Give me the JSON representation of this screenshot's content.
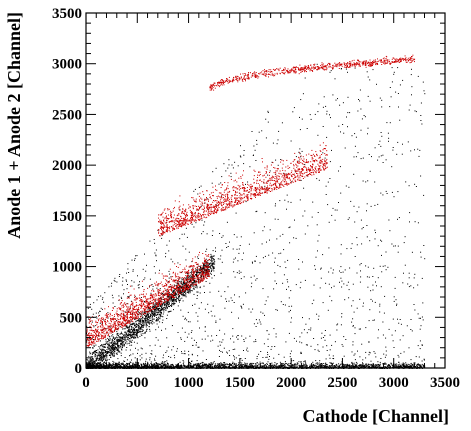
{
  "chart_data": {
    "type": "scatter",
    "title": "",
    "xlabel": "Cathode [Channel]",
    "ylabel": "Anode 1 + Anode 2 [Channel]",
    "xlim": [
      0,
      3500
    ],
    "ylim": [
      0,
      3500
    ],
    "x_ticks": [
      "0",
      "500",
      "1000",
      "1500",
      "2000",
      "2500",
      "3000",
      "3500"
    ],
    "y_ticks": [
      "0",
      "500",
      "1000",
      "1500",
      "2000",
      "2500",
      "3000",
      "3500"
    ],
    "grid": false,
    "legend": "none",
    "colors": {
      "black_points": "#000000",
      "red_points": "#cc0000"
    },
    "series": [
      {
        "color": "#000000",
        "components": [
          {
            "shape": "band",
            "x_range": [
              0,
              3300
            ],
            "y_center": 0,
            "y_spread": 80
          },
          {
            "shape": "diagonal",
            "x_range": [
              0,
              1250
            ],
            "y_at_x_start": 0,
            "y_at_x_end": 1050,
            "y_spread": 220
          },
          {
            "shape": "uniform",
            "x_range": [
              0,
              3300
            ],
            "y_range": [
              0,
              3000
            ]
          }
        ]
      },
      {
        "color": "#cc0000",
        "components": [
          {
            "shape": "cluster",
            "x_range": [
              0,
              1200
            ],
            "y_range": [
              200,
              1200
            ]
          },
          {
            "shape": "cluster",
            "x_range": [
              700,
              2350
            ],
            "y_range": [
              1300,
              2250
            ]
          },
          {
            "shape": "arc",
            "x_range": [
              1200,
              3200
            ],
            "y_range": [
              2750,
              3050
            ]
          }
        ]
      }
    ]
  }
}
